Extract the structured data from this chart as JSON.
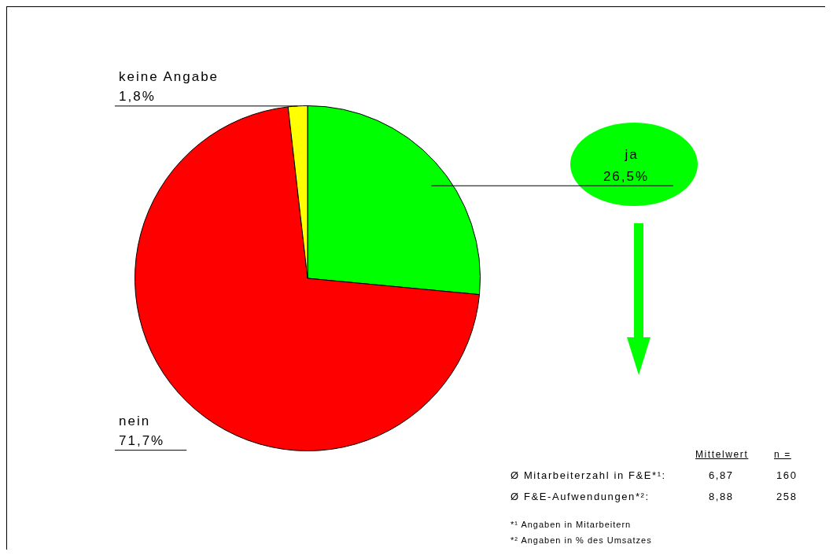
{
  "chart_data": {
    "type": "pie",
    "categories": [
      "ja",
      "nein",
      "keine Angabe"
    ],
    "values": [
      26.5,
      71.7,
      1.8
    ],
    "value_labels": [
      "26,5%",
      "71,7%",
      "1,8%"
    ],
    "colors": [
      "#00ff00",
      "#ff0000",
      "#ffff00"
    ],
    "legend": false,
    "annotations": [
      "Mittelwert",
      "n =",
      "Ø Mitarbeiterzahl in F&E*¹:",
      "6,87",
      "160",
      "Ø F&E-Aufwendungen*²:",
      "8,88",
      "258",
      "*¹ Angaben in Mitarbeitern",
      "*² Angaben in % des Umsatzes"
    ]
  }
}
